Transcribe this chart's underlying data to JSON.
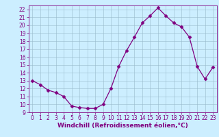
{
  "x": [
    0,
    1,
    2,
    3,
    4,
    5,
    6,
    7,
    8,
    9,
    10,
    11,
    12,
    13,
    14,
    15,
    16,
    17,
    18,
    19,
    20,
    21,
    22,
    23
  ],
  "y": [
    13.0,
    12.5,
    11.8,
    11.5,
    11.0,
    9.8,
    9.6,
    9.5,
    9.5,
    10.0,
    12.0,
    14.8,
    16.8,
    18.5,
    20.3,
    21.2,
    22.2,
    21.2,
    20.3,
    19.8,
    18.5,
    14.8,
    13.2,
    14.7
  ],
  "ylim": [
    9,
    22.5
  ],
  "xlim": [
    -0.5,
    23.5
  ],
  "yticks": [
    9,
    10,
    11,
    12,
    13,
    14,
    15,
    16,
    17,
    18,
    19,
    20,
    21,
    22
  ],
  "xticks": [
    0,
    1,
    2,
    3,
    4,
    5,
    6,
    7,
    8,
    9,
    10,
    11,
    12,
    13,
    14,
    15,
    16,
    17,
    18,
    19,
    20,
    21,
    22,
    23
  ],
  "line_color": "#800080",
  "marker": "D",
  "marker_size": 2.5,
  "bg_color": "#cceeff",
  "grid_color": "#99bbcc",
  "xlabel": "Windchill (Refroidissement éolien,°C)",
  "tick_fontsize": 5.5,
  "label_fontsize": 6.5,
  "fig_bg": "#cceeff"
}
